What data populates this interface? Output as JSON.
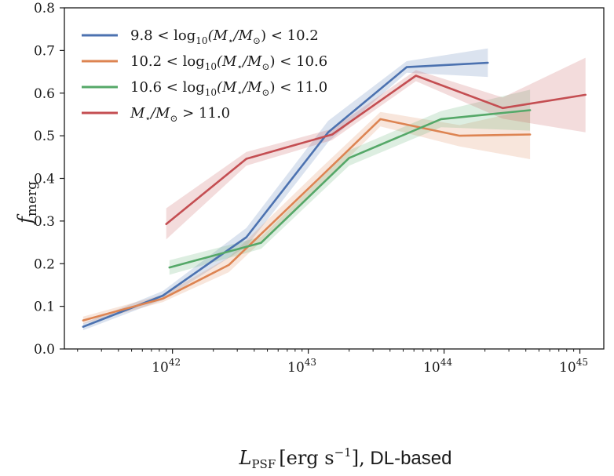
{
  "chart_data": {
    "type": "line",
    "title": "",
    "xlabel": "L_PSF [erg s^-1], DL-based",
    "xlabel_parts": {
      "var": "L",
      "sub": "PSF",
      "unit": "[erg s",
      "exp": "−1",
      "close": "],",
      "suffix": " DL-based"
    },
    "ylabel": "f_merg",
    "ylabel_parts": {
      "var": "f",
      "sub": "merg"
    },
    "xscale": "log",
    "xlim": [
      1.6e+41,
      1.5e+45
    ],
    "ylim": [
      0.0,
      0.8
    ],
    "xticks": [
      {
        "value": 1e+42,
        "base": "10",
        "exp": "42"
      },
      {
        "value": 1e+43,
        "base": "10",
        "exp": "43"
      },
      {
        "value": 1e+44,
        "base": "10",
        "exp": "44"
      },
      {
        "value": 1e+45,
        "base": "10",
        "exp": "45"
      }
    ],
    "yticks": [
      "0.0",
      "0.1",
      "0.2",
      "0.3",
      "0.4",
      "0.5",
      "0.6",
      "0.7",
      "0.8"
    ],
    "grid": false,
    "legend_position": "top-left",
    "series": [
      {
        "name": "9.8 < log10(M⋆/M⊙) < 10.2",
        "label_parts": [
          "9.8 < log",
          "10",
          "(M",
          "⋆",
          "/M",
          "⊙",
          ") < 10.2"
        ],
        "color": "#4c72b0",
        "x": [
          2.2e+41,
          8.5e+41,
          3.5e+42,
          1.4e+43,
          5.3e+43,
          2.1e+44
        ],
        "y": [
          0.052,
          0.125,
          0.262,
          0.508,
          0.661,
          0.671
        ],
        "lower": [
          0.044,
          0.115,
          0.24,
          0.485,
          0.648,
          0.638
        ],
        "upper": [
          0.06,
          0.136,
          0.284,
          0.535,
          0.675,
          0.705
        ]
      },
      {
        "name": "10.2 < log10(M⋆/M⊙) < 10.6",
        "label_parts": [
          "10.2 < log",
          "10",
          "(M",
          "⋆",
          "/M",
          "⊙",
          ") < 10.6"
        ],
        "color": "#dd8452",
        "x": [
          2.2e+41,
          8.5e+41,
          2.6e+42,
          1.2e+43,
          3.4e+43,
          1.3e+44,
          4.3e+44
        ],
        "y": [
          0.067,
          0.118,
          0.197,
          0.4,
          0.539,
          0.5,
          0.503
        ],
        "lower": [
          0.059,
          0.11,
          0.18,
          0.38,
          0.522,
          0.475,
          0.445
        ],
        "upper": [
          0.076,
          0.127,
          0.215,
          0.42,
          0.556,
          0.525,
          0.562
        ]
      },
      {
        "name": "10.6 < log10(M⋆/M⊙) < 11.0",
        "label_parts": [
          "10.6 < log",
          "10",
          "(M",
          "⋆",
          "/M",
          "⊙",
          ") < 11.0"
        ],
        "color": "#55a868",
        "x": [
          9.5e+41,
          4.5e+42,
          2e+43,
          9.5e+43,
          4.3e+44
        ],
        "y": [
          0.191,
          0.249,
          0.448,
          0.539,
          0.56
        ],
        "lower": [
          0.174,
          0.235,
          0.43,
          0.52,
          0.512
        ],
        "upper": [
          0.208,
          0.263,
          0.466,
          0.558,
          0.608
        ]
      },
      {
        "name": "M⋆/M⊙ > 11.0",
        "label_parts": [
          "M",
          "⋆",
          "/M",
          "⊙",
          " > 11.0"
        ],
        "color": "#c44e52",
        "x": [
          9e+41,
          3.5e+42,
          1.5e+43,
          6.2e+43,
          2.7e+44,
          1.1e+45
        ],
        "y": [
          0.293,
          0.446,
          0.503,
          0.641,
          0.565,
          0.596
        ],
        "lower": [
          0.257,
          0.43,
          0.49,
          0.628,
          0.54,
          0.508
        ],
        "upper": [
          0.33,
          0.462,
          0.516,
          0.654,
          0.59,
          0.683
        ]
      }
    ]
  }
}
